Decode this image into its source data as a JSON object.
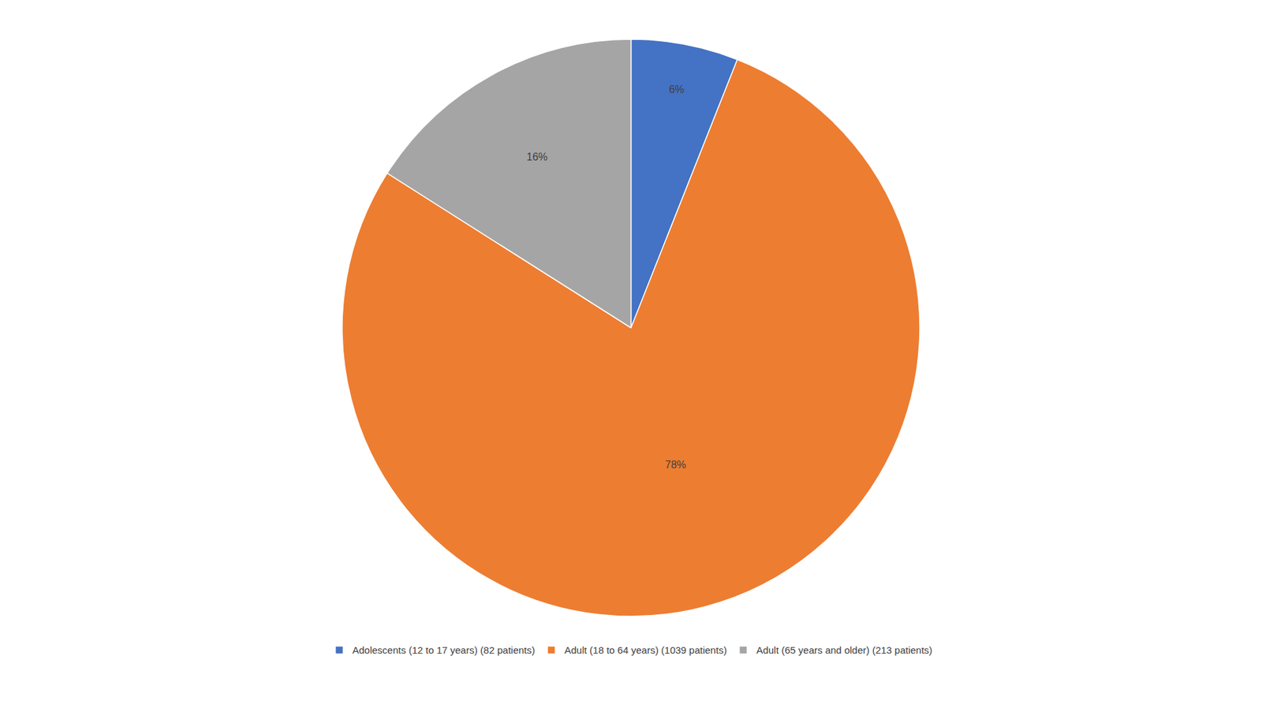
{
  "chart_data": {
    "type": "pie",
    "categories": [
      "Adolescents (12 to 17 years) (82 patients)",
      "Adult (18 to 64 years) (1039 patients)",
      "Adult (65 years and older) (213 patients)"
    ],
    "values": [
      6,
      78,
      16
    ],
    "value_labels": [
      "6%",
      "78%",
      "16%"
    ],
    "colors": [
      "#4472C4",
      "#ED7D31",
      "#A5A5A5"
    ],
    "data_labels": true,
    "legend": "bottom"
  }
}
